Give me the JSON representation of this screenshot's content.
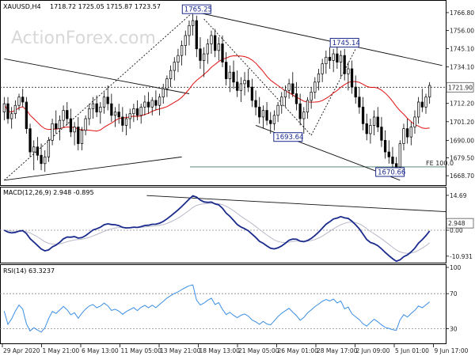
{
  "chart_data": [
    {
      "type": "candlestick",
      "symbol": "XAUUSD,H4",
      "ohlc_label": "1718.72 1725.05 1715.87 1723.57",
      "watermark": "ActionForex.com",
      "ylim": [
        1664,
        1772
      ],
      "y_ticks": [
        "1766.80",
        "1756.00",
        "1745.10",
        "1734.10",
        "1723.40",
        "1712.20",
        "1701.20",
        "1690.00",
        "1679.50",
        "1668.70"
      ],
      "current_price": "1721.90",
      "fe_label": "FE 100.0",
      "fe_level": 1674,
      "annotations": [
        {
          "text": "1765.25",
          "x": 52,
          "y": 1765.25
        },
        {
          "text": "1745.14",
          "x": 92,
          "y": 1745.14
        },
        {
          "text": "1693.64",
          "x": 81,
          "y": 1693.64
        },
        {
          "text": "1670.66",
          "x": 109,
          "y": 1670.66
        }
      ],
      "ohlc": [
        [
          1707,
          1716,
          1702,
          1712
        ],
        [
          1712,
          1716,
          1700,
          1703
        ],
        [
          1703,
          1710,
          1697,
          1706
        ],
        [
          1706,
          1714,
          1703,
          1711
        ],
        [
          1711,
          1718,
          1708,
          1716
        ],
        [
          1716,
          1721,
          1710,
          1713
        ],
        [
          1713,
          1716,
          1694,
          1697
        ],
        [
          1697,
          1700,
          1680,
          1683
        ],
        [
          1683,
          1690,
          1672,
          1686
        ],
        [
          1686,
          1692,
          1678,
          1681
        ],
        [
          1681,
          1688,
          1672,
          1676
        ],
        [
          1676,
          1684,
          1671,
          1680
        ],
        [
          1680,
          1692,
          1677,
          1690
        ],
        [
          1690,
          1703,
          1687,
          1700
        ],
        [
          1700,
          1708,
          1694,
          1697
        ],
        [
          1697,
          1705,
          1690,
          1702
        ],
        [
          1702,
          1711,
          1698,
          1708
        ],
        [
          1708,
          1713,
          1699,
          1703
        ],
        [
          1703,
          1709,
          1692,
          1695
        ],
        [
          1695,
          1701,
          1687,
          1698
        ],
        [
          1698,
          1704,
          1684,
          1688
        ],
        [
          1688,
          1698,
          1684,
          1696
        ],
        [
          1696,
          1705,
          1693,
          1703
        ],
        [
          1703,
          1712,
          1699,
          1709
        ],
        [
          1709,
          1716,
          1703,
          1712
        ],
        [
          1712,
          1717,
          1704,
          1707
        ],
        [
          1707,
          1713,
          1700,
          1710
        ],
        [
          1710,
          1719,
          1706,
          1716
        ],
        [
          1716,
          1723,
          1708,
          1712
        ],
        [
          1712,
          1718,
          1701,
          1705
        ],
        [
          1705,
          1710,
          1698,
          1707
        ],
        [
          1707,
          1712,
          1700,
          1704
        ],
        [
          1704,
          1710,
          1695,
          1699
        ],
        [
          1699,
          1706,
          1693,
          1703
        ],
        [
          1703,
          1709,
          1697,
          1706
        ],
        [
          1706,
          1712,
          1701,
          1709
        ],
        [
          1709,
          1714,
          1702,
          1705
        ],
        [
          1705,
          1712,
          1700,
          1710
        ],
        [
          1710,
          1717,
          1705,
          1713
        ],
        [
          1713,
          1719,
          1706,
          1710
        ],
        [
          1710,
          1716,
          1705,
          1714
        ],
        [
          1714,
          1720,
          1708,
          1711
        ],
        [
          1711,
          1718,
          1705,
          1716
        ],
        [
          1716,
          1724,
          1712,
          1721
        ],
        [
          1721,
          1729,
          1716,
          1727
        ],
        [
          1727,
          1735,
          1722,
          1732
        ],
        [
          1732,
          1740,
          1726,
          1737
        ],
        [
          1737,
          1745,
          1731,
          1741
        ],
        [
          1741,
          1750,
          1735,
          1747
        ],
        [
          1747,
          1756,
          1741,
          1753
        ],
        [
          1753,
          1762,
          1747,
          1759
        ],
        [
          1759,
          1766,
          1753,
          1762
        ],
        [
          1762,
          1765,
          1740,
          1745
        ],
        [
          1745,
          1752,
          1733,
          1738
        ],
        [
          1738,
          1746,
          1728,
          1742
        ],
        [
          1742,
          1751,
          1736,
          1748
        ],
        [
          1748,
          1756,
          1742,
          1753
        ],
        [
          1753,
          1757,
          1740,
          1744
        ],
        [
          1744,
          1752,
          1738,
          1748
        ],
        [
          1748,
          1753,
          1734,
          1737
        ],
        [
          1737,
          1743,
          1723,
          1727
        ],
        [
          1727,
          1735,
          1719,
          1731
        ],
        [
          1731,
          1738,
          1721,
          1725
        ],
        [
          1725,
          1732,
          1716,
          1720
        ],
        [
          1720,
          1728,
          1713,
          1724
        ],
        [
          1724,
          1731,
          1717,
          1726
        ],
        [
          1726,
          1733,
          1719,
          1722
        ],
        [
          1722,
          1727,
          1710,
          1714
        ],
        [
          1714,
          1720,
          1705,
          1710
        ],
        [
          1710,
          1716,
          1700,
          1704
        ],
        [
          1704,
          1711,
          1697,
          1708
        ],
        [
          1708,
          1713,
          1699,
          1702
        ],
        [
          1702,
          1707,
          1694,
          1700
        ],
        [
          1700,
          1708,
          1696,
          1705
        ],
        [
          1705,
          1713,
          1701,
          1711
        ],
        [
          1711,
          1719,
          1706,
          1716
        ],
        [
          1716,
          1723,
          1710,
          1720
        ],
        [
          1720,
          1727,
          1715,
          1724
        ],
        [
          1724,
          1731,
          1716,
          1718
        ],
        [
          1718,
          1725,
          1708,
          1712
        ],
        [
          1712,
          1718,
          1699,
          1703
        ],
        [
          1703,
          1710,
          1694,
          1707
        ],
        [
          1707,
          1716,
          1703,
          1714
        ],
        [
          1714,
          1722,
          1709,
          1719
        ],
        [
          1719,
          1728,
          1715,
          1725
        ],
        [
          1725,
          1733,
          1720,
          1730
        ],
        [
          1730,
          1739,
          1725,
          1736
        ],
        [
          1736,
          1744,
          1730,
          1740
        ],
        [
          1740,
          1746,
          1733,
          1738
        ],
        [
          1738,
          1745,
          1731,
          1742
        ],
        [
          1742,
          1746,
          1733,
          1737
        ],
        [
          1737,
          1744,
          1728,
          1741
        ],
        [
          1741,
          1745,
          1726,
          1730
        ],
        [
          1730,
          1737,
          1720,
          1733
        ],
        [
          1733,
          1738,
          1718,
          1722
        ],
        [
          1722,
          1729,
          1712,
          1716
        ],
        [
          1716,
          1722,
          1706,
          1710
        ],
        [
          1710,
          1716,
          1696,
          1700
        ],
        [
          1700,
          1706,
          1690,
          1694
        ],
        [
          1694,
          1703,
          1688,
          1699
        ],
        [
          1699,
          1708,
          1693,
          1704
        ],
        [
          1704,
          1710,
          1695,
          1698
        ],
        [
          1698,
          1704,
          1686,
          1690
        ],
        [
          1690,
          1696,
          1679,
          1683
        ],
        [
          1683,
          1690,
          1676,
          1680
        ],
        [
          1680,
          1686,
          1672,
          1676
        ],
        [
          1676,
          1680,
          1670,
          1674
        ],
        [
          1674,
          1690,
          1672,
          1688
        ],
        [
          1688,
          1700,
          1684,
          1697
        ],
        [
          1697,
          1703,
          1688,
          1692
        ],
        [
          1692,
          1701,
          1687,
          1698
        ],
        [
          1698,
          1708,
          1694,
          1704
        ],
        [
          1704,
          1716,
          1700,
          1713
        ],
        [
          1713,
          1721,
          1707,
          1710
        ],
        [
          1710,
          1718,
          1706,
          1716
        ],
        [
          1716,
          1725,
          1712,
          1723
        ]
      ]
    },
    {
      "type": "line",
      "title": "MACD(12,26,9) 2.948 -0.895",
      "ylim": [
        -13,
        17
      ],
      "y_ticks": [
        "14.69",
        "0.00",
        "-10.931"
      ],
      "current_value": "2.948"
    },
    {
      "type": "line",
      "title": "RSI(14) 63.3237",
      "ylim": [
        15,
        100
      ],
      "y_ticks": [
        "100",
        "70",
        "30",
        "0"
      ]
    }
  ],
  "x_axis_labels": [
    "29 Apr 2020",
    "1 May 21:00",
    "6 May 13:00",
    "11 May 05:00",
    "13 May 21:00",
    "18 May 13:00",
    "21 May 05:00",
    "26 May 01:00",
    "28 May 17:00",
    "2 Jun 09:00",
    "5 Jun 01:00",
    "9 Jun 17:00"
  ]
}
